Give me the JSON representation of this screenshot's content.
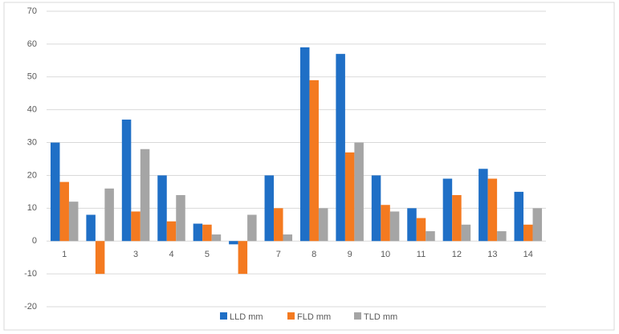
{
  "chart_data": {
    "type": "bar",
    "categories": [
      "1",
      null,
      "3",
      "4",
      "5",
      null,
      "7",
      "8",
      "9",
      "10",
      "11",
      "12",
      "13",
      "14"
    ],
    "series": [
      {
        "name": "LLD mm",
        "color": "#1f6fc6",
        "values": [
          30,
          8,
          37,
          20,
          5.3,
          -1,
          20,
          59,
          57,
          20,
          10,
          19,
          22,
          15
        ]
      },
      {
        "name": "FLD mm",
        "color": "#f47a20",
        "values": [
          18,
          -10,
          9,
          6,
          5,
          -10,
          10,
          49,
          27,
          11,
          7,
          14,
          19,
          5
        ]
      },
      {
        "name": "TLD mm",
        "color": "#a5a5a5",
        "values": [
          12,
          16,
          28,
          14,
          2,
          8,
          2,
          10,
          30,
          9,
          3,
          5,
          3,
          10
        ]
      }
    ],
    "ylim": [
      -20,
      70
    ],
    "yticks": [
      -20,
      -10,
      0,
      10,
      20,
      30,
      40,
      50,
      60,
      70
    ],
    "grid": true,
    "legend": "bottom"
  }
}
